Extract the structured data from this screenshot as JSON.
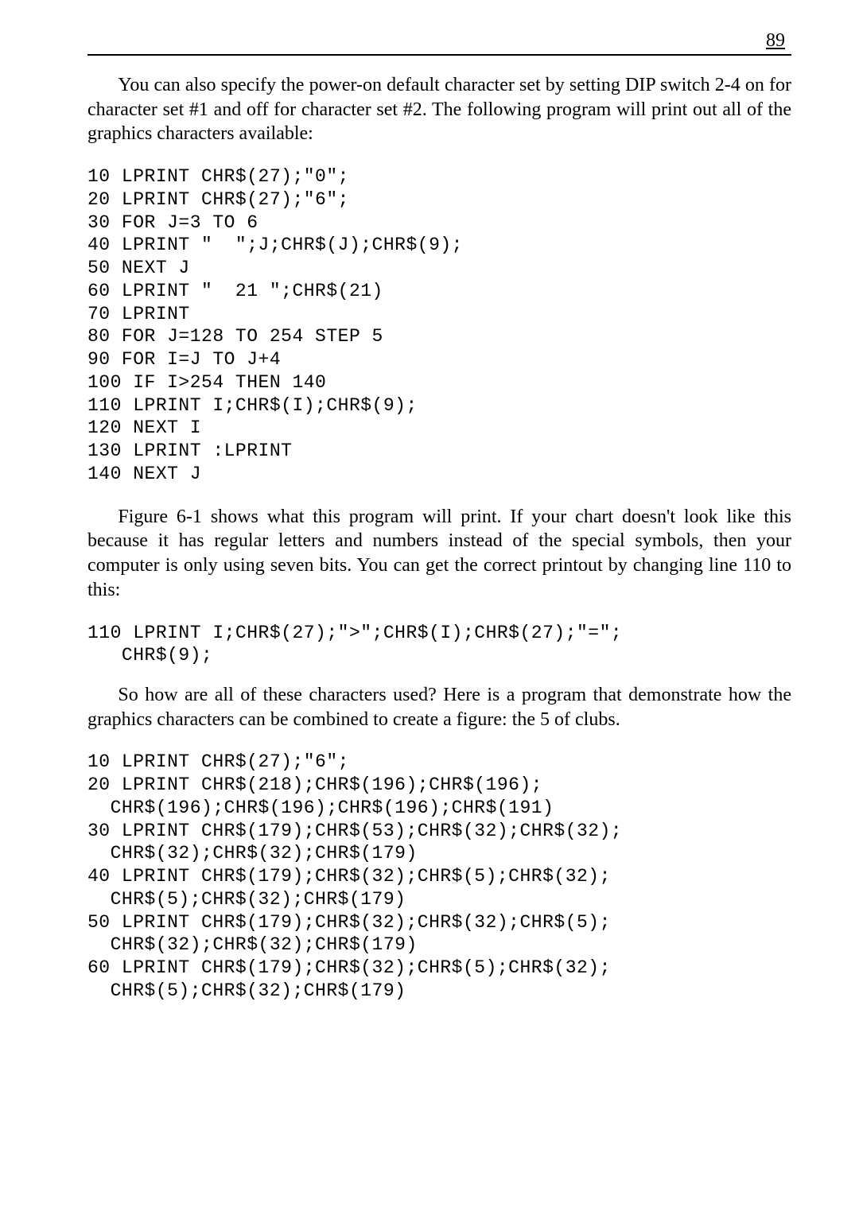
{
  "page_number": "89",
  "para1": "You can also specify the power-on default character set by setting DIP switch 2-4 on for character set #1 and off for character set #2. The following program will print out all of the graphics characters available:",
  "code1": "10 LPRINT CHR$(27);\"0\";\n20 LPRINT CHR$(27);\"6\";\n30 FOR J=3 TO 6\n40 LPRINT \"  \";J;CHR$(J);CHR$(9);\n50 NEXT J\n60 LPRINT \"  21 \";CHR$(21)\n70 LPRINT\n80 FOR J=128 TO 254 STEP 5\n90 FOR I=J TO J+4\n100 IF I>254 THEN 140\n110 LPRINT I;CHR$(I);CHR$(9);\n120 NEXT I\n130 LPRINT :LPRINT\n140 NEXT J",
  "para2": "Figure 6-1 shows what this program will print. If your chart doesn't look like this because it has regular letters and numbers instead of the special symbols, then your computer is only using seven bits. You can get the correct printout by changing line 110 to this:",
  "code2": "110 LPRINT I;CHR$(27);\">\";CHR$(I);CHR$(27);\"=\";\n   CHR$(9);",
  "para3": "So how are all of these characters used? Here is a program that demonstrate how the graphics characters can be combined to create a figure: the 5 of clubs.",
  "code3": "10 LPRINT CHR$(27);\"6\";\n20 LPRINT CHR$(218);CHR$(196);CHR$(196);\n  CHR$(196);CHR$(196);CHR$(196);CHR$(191)\n30 LPRINT CHR$(179);CHR$(53);CHR$(32);CHR$(32);\n  CHR$(32);CHR$(32);CHR$(179)\n40 LPRINT CHR$(179);CHR$(32);CHR$(5);CHR$(32);\n  CHR$(5);CHR$(32);CHR$(179)\n50 LPRINT CHR$(179);CHR$(32);CHR$(32);CHR$(5);\n  CHR$(32);CHR$(32);CHR$(179)\n60 LPRINT CHR$(179);CHR$(32);CHR$(5);CHR$(32);\n  CHR$(5);CHR$(32);CHR$(179)"
}
